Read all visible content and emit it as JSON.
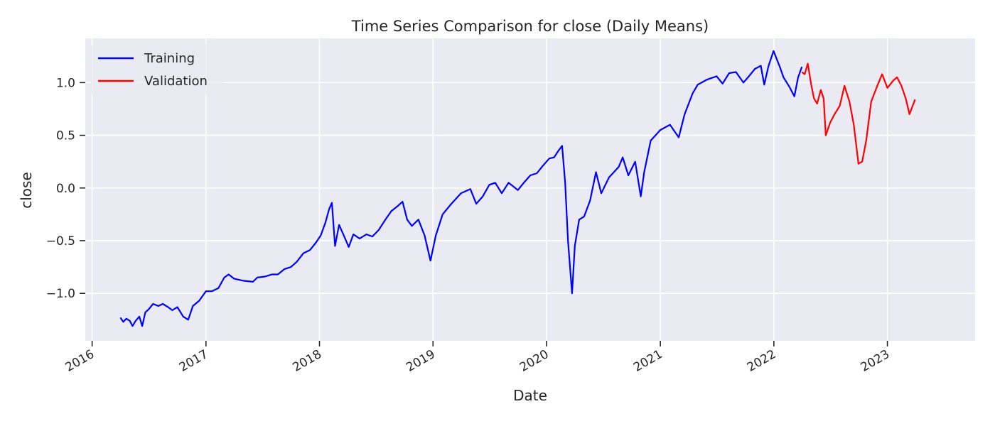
{
  "chart_data": {
    "type": "line",
    "title": "Time Series Comparison for close (Daily Means)",
    "xlabel": "Date",
    "ylabel": "close",
    "xlim": [
      "2015-12-10",
      "2023-10-10"
    ],
    "ylim": [
      -1.45,
      1.42
    ],
    "x_ticks": [
      "2016",
      "2017",
      "2018",
      "2019",
      "2020",
      "2021",
      "2022",
      "2023"
    ],
    "y_ticks": [
      "−1.0",
      "−0.5",
      "0.0",
      "0.5",
      "1.0"
    ],
    "y_tick_values": [
      -1.0,
      -0.5,
      0.0,
      0.5,
      1.0
    ],
    "grid": true,
    "legend": "top-left",
    "background_color": "#eaeaf2",
    "series": [
      {
        "name": "Training",
        "color": "#0000ff",
        "points": [
          [
            "2016-04-01",
            -1.23
          ],
          [
            "2016-04-10",
            -1.27
          ],
          [
            "2016-04-20",
            -1.24
          ],
          [
            "2016-05-01",
            -1.26
          ],
          [
            "2016-05-10",
            -1.31
          ],
          [
            "2016-05-20",
            -1.26
          ],
          [
            "2016-06-01",
            -1.22
          ],
          [
            "2016-06-10",
            -1.31
          ],
          [
            "2016-06-20",
            -1.18
          ],
          [
            "2016-07-01",
            -1.15
          ],
          [
            "2016-07-15",
            -1.1
          ],
          [
            "2016-08-01",
            -1.12
          ],
          [
            "2016-08-15",
            -1.1
          ],
          [
            "2016-09-01",
            -1.13
          ],
          [
            "2016-09-15",
            -1.16
          ],
          [
            "2016-10-01",
            -1.13
          ],
          [
            "2016-10-20",
            -1.22
          ],
          [
            "2016-11-05",
            -1.25
          ],
          [
            "2016-11-20",
            -1.12
          ],
          [
            "2016-12-10",
            -1.07
          ],
          [
            "2017-01-01",
            -0.98
          ],
          [
            "2017-01-20",
            -0.98
          ],
          [
            "2017-02-10",
            -0.95
          ],
          [
            "2017-03-01",
            -0.85
          ],
          [
            "2017-03-15",
            -0.82
          ],
          [
            "2017-04-01",
            -0.86
          ],
          [
            "2017-05-01",
            -0.88
          ],
          [
            "2017-06-01",
            -0.89
          ],
          [
            "2017-06-15",
            -0.85
          ],
          [
            "2017-07-10",
            -0.84
          ],
          [
            "2017-08-01",
            -0.82
          ],
          [
            "2017-08-20",
            -0.82
          ],
          [
            "2017-09-10",
            -0.77
          ],
          [
            "2017-10-01",
            -0.75
          ],
          [
            "2017-10-20",
            -0.7
          ],
          [
            "2017-11-10",
            -0.62
          ],
          [
            "2017-12-01",
            -0.59
          ],
          [
            "2017-12-20",
            -0.52
          ],
          [
            "2018-01-05",
            -0.45
          ],
          [
            "2018-01-20",
            -0.33
          ],
          [
            "2018-02-01",
            -0.2
          ],
          [
            "2018-02-10",
            -0.14
          ],
          [
            "2018-02-20",
            -0.55
          ],
          [
            "2018-03-05",
            -0.35
          ],
          [
            "2018-03-20",
            -0.45
          ],
          [
            "2018-04-05",
            -0.56
          ],
          [
            "2018-04-20",
            -0.44
          ],
          [
            "2018-05-10",
            -0.48
          ],
          [
            "2018-06-01",
            -0.44
          ],
          [
            "2018-06-20",
            -0.46
          ],
          [
            "2018-07-10",
            -0.4
          ],
          [
            "2018-08-01",
            -0.3
          ],
          [
            "2018-08-20",
            -0.22
          ],
          [
            "2018-09-10",
            -0.17
          ],
          [
            "2018-09-25",
            -0.13
          ],
          [
            "2018-10-10",
            -0.3
          ],
          [
            "2018-10-25",
            -0.36
          ],
          [
            "2018-11-15",
            -0.3
          ],
          [
            "2018-12-05",
            -0.45
          ],
          [
            "2018-12-24",
            -0.69
          ],
          [
            "2019-01-10",
            -0.45
          ],
          [
            "2019-02-01",
            -0.25
          ],
          [
            "2019-03-01",
            -0.15
          ],
          [
            "2019-04-01",
            -0.05
          ],
          [
            "2019-05-01",
            -0.01
          ],
          [
            "2019-05-20",
            -0.15
          ],
          [
            "2019-06-10",
            -0.08
          ],
          [
            "2019-07-01",
            0.03
          ],
          [
            "2019-07-20",
            0.05
          ],
          [
            "2019-08-10",
            -0.05
          ],
          [
            "2019-09-01",
            0.05
          ],
          [
            "2019-10-01",
            -0.02
          ],
          [
            "2019-10-20",
            0.05
          ],
          [
            "2019-11-10",
            0.12
          ],
          [
            "2019-12-01",
            0.14
          ],
          [
            "2019-12-20",
            0.21
          ],
          [
            "2020-01-10",
            0.28
          ],
          [
            "2020-01-25",
            0.29
          ],
          [
            "2020-02-10",
            0.36
          ],
          [
            "2020-02-20",
            0.4
          ],
          [
            "2020-03-01",
            0.05
          ],
          [
            "2020-03-10",
            -0.5
          ],
          [
            "2020-03-23",
            -1.0
          ],
          [
            "2020-04-01",
            -0.55
          ],
          [
            "2020-04-15",
            -0.3
          ],
          [
            "2020-05-01",
            -0.27
          ],
          [
            "2020-05-20",
            -0.12
          ],
          [
            "2020-06-08",
            0.15
          ],
          [
            "2020-06-25",
            -0.05
          ],
          [
            "2020-07-20",
            0.1
          ],
          [
            "2020-08-20",
            0.2
          ],
          [
            "2020-09-02",
            0.29
          ],
          [
            "2020-09-20",
            0.12
          ],
          [
            "2020-10-12",
            0.25
          ],
          [
            "2020-10-30",
            -0.08
          ],
          [
            "2020-11-10",
            0.15
          ],
          [
            "2020-12-01",
            0.45
          ],
          [
            "2021-01-01",
            0.55
          ],
          [
            "2021-02-01",
            0.6
          ],
          [
            "2021-03-01",
            0.48
          ],
          [
            "2021-03-20",
            0.7
          ],
          [
            "2021-04-15",
            0.9
          ],
          [
            "2021-05-01",
            0.98
          ],
          [
            "2021-06-01",
            1.03
          ],
          [
            "2021-07-01",
            1.06
          ],
          [
            "2021-07-20",
            0.99
          ],
          [
            "2021-08-10",
            1.09
          ],
          [
            "2021-09-01",
            1.1
          ],
          [
            "2021-09-25",
            1.0
          ],
          [
            "2021-10-10",
            1.05
          ],
          [
            "2021-11-01",
            1.13
          ],
          [
            "2021-11-20",
            1.16
          ],
          [
            "2021-12-01",
            0.98
          ],
          [
            "2021-12-15",
            1.16
          ],
          [
            "2021-12-31",
            1.3
          ],
          [
            "2022-01-20",
            1.15
          ],
          [
            "2022-02-01",
            1.05
          ],
          [
            "2022-02-20",
            0.96
          ],
          [
            "2022-03-08",
            0.87
          ],
          [
            "2022-03-20",
            1.05
          ],
          [
            "2022-04-01",
            1.15
          ]
        ]
      },
      {
        "name": "Validation",
        "color": "#ff0000",
        "points": [
          [
            "2022-04-01",
            1.1
          ],
          [
            "2022-04-10",
            1.08
          ],
          [
            "2022-04-20",
            1.18
          ],
          [
            "2022-05-01",
            0.98
          ],
          [
            "2022-05-10",
            0.85
          ],
          [
            "2022-05-20",
            0.8
          ],
          [
            "2022-06-01",
            0.93
          ],
          [
            "2022-06-10",
            0.85
          ],
          [
            "2022-06-17",
            0.5
          ],
          [
            "2022-07-01",
            0.62
          ],
          [
            "2022-07-15",
            0.7
          ],
          [
            "2022-08-01",
            0.78
          ],
          [
            "2022-08-16",
            0.97
          ],
          [
            "2022-09-01",
            0.82
          ],
          [
            "2022-09-15",
            0.6
          ],
          [
            "2022-09-30",
            0.23
          ],
          [
            "2022-10-12",
            0.25
          ],
          [
            "2022-10-25",
            0.45
          ],
          [
            "2022-11-10",
            0.82
          ],
          [
            "2022-12-01",
            0.98
          ],
          [
            "2022-12-15",
            1.08
          ],
          [
            "2023-01-01",
            0.95
          ],
          [
            "2023-01-20",
            1.02
          ],
          [
            "2023-02-01",
            1.05
          ],
          [
            "2023-02-15",
            0.97
          ],
          [
            "2023-03-01",
            0.85
          ],
          [
            "2023-03-13",
            0.7
          ],
          [
            "2023-03-31",
            0.84
          ]
        ]
      }
    ]
  }
}
